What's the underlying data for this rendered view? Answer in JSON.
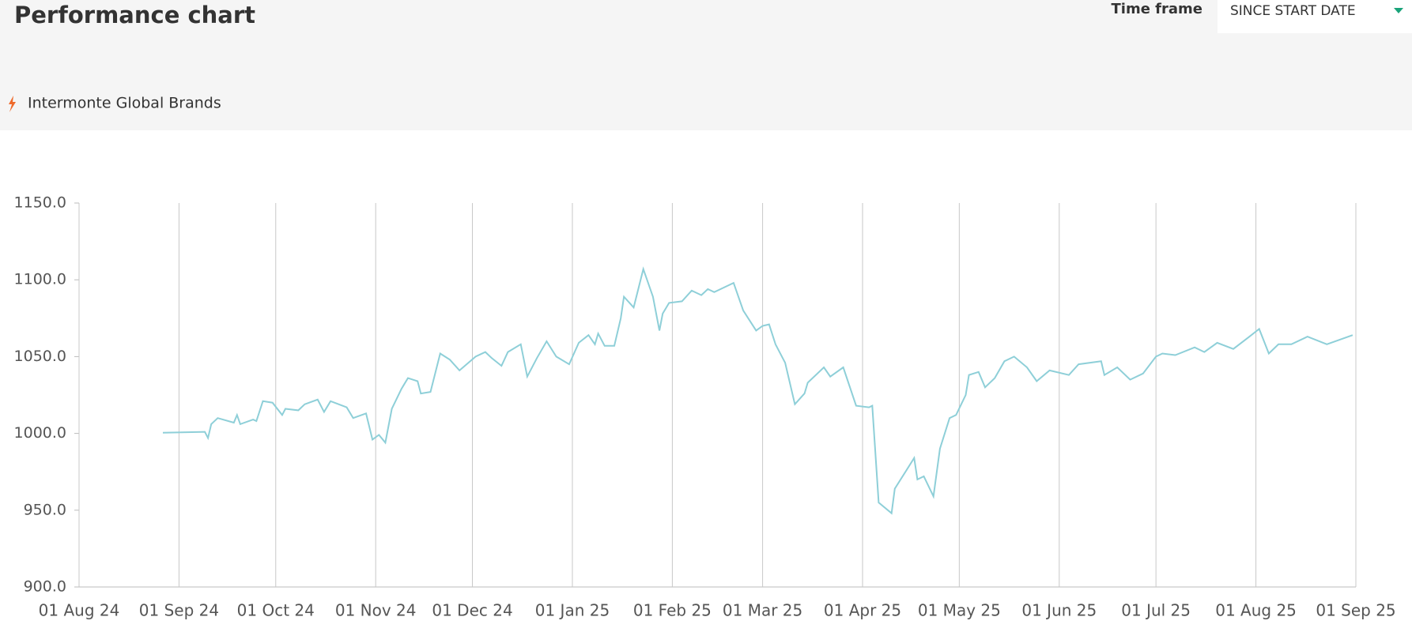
{
  "header": {
    "title": "Performance chart",
    "time_frame_label": "Time frame",
    "time_frame_value": "SINCE START DATE"
  },
  "chart_data": {
    "type": "line",
    "x": [
      "2024-08-27",
      "2024-09-09",
      "2024-09-10",
      "2024-09-11",
      "2024-09-13",
      "2024-09-18",
      "2024-09-19",
      "2024-09-20",
      "2024-09-24",
      "2024-09-25",
      "2024-09-27",
      "2024-09-30",
      "2024-10-03",
      "2024-10-04",
      "2024-10-08",
      "2024-10-10",
      "2024-10-14",
      "2024-10-16",
      "2024-10-18",
      "2024-10-23",
      "2024-10-25",
      "2024-10-29",
      "2024-10-31",
      "2024-11-02",
      "2024-11-04",
      "2024-11-06",
      "2024-11-09",
      "2024-11-11",
      "2024-11-14",
      "2024-11-15",
      "2024-11-18",
      "2024-11-21",
      "2024-11-24",
      "2024-11-27",
      "2024-12-02",
      "2024-12-05",
      "2024-12-07",
      "2024-12-10",
      "2024-12-12",
      "2024-12-16",
      "2024-12-18",
      "2024-12-21",
      "2024-12-24",
      "2024-12-27",
      "2024-12-31",
      "2025-01-03",
      "2025-01-06",
      "2025-01-08",
      "2025-01-09",
      "2025-01-11",
      "2025-01-14",
      "2025-01-16",
      "2025-01-17",
      "2025-01-20",
      "2025-01-23",
      "2025-01-26",
      "2025-01-28",
      "2025-01-29",
      "2025-01-31",
      "2025-02-04",
      "2025-02-07",
      "2025-02-10",
      "2025-02-12",
      "2025-02-14",
      "2025-02-20",
      "2025-02-23",
      "2025-02-27",
      "2025-03-01",
      "2025-03-03",
      "2025-03-05",
      "2025-03-08",
      "2025-03-11",
      "2025-03-14",
      "2025-03-15",
      "2025-03-20",
      "2025-03-22",
      "2025-03-26",
      "2025-03-30",
      "2025-04-03",
      "2025-04-04",
      "2025-04-06",
      "2025-04-10",
      "2025-04-11",
      "2025-04-17",
      "2025-04-18",
      "2025-04-20",
      "2025-04-23",
      "2025-04-25",
      "2025-04-28",
      "2025-04-30",
      "2025-05-03",
      "2025-05-04",
      "2025-05-07",
      "2025-05-09",
      "2025-05-12",
      "2025-05-15",
      "2025-05-18",
      "2025-05-22",
      "2025-05-25",
      "2025-05-29",
      "2025-06-04",
      "2025-06-07",
      "2025-06-14",
      "2025-06-15",
      "2025-06-19",
      "2025-06-23",
      "2025-06-27",
      "2025-07-01",
      "2025-07-03",
      "2025-07-07",
      "2025-07-13",
      "2025-07-16",
      "2025-07-20",
      "2025-07-25",
      "2025-07-30",
      "2025-08-02",
      "2025-08-05",
      "2025-08-08",
      "2025-08-12",
      "2025-08-17",
      "2025-08-23",
      "2025-08-31"
    ],
    "series": [
      {
        "name": "Intermonte Global Brands",
        "color": "#8ecfd8",
        "values": [
          1000.4,
          1001,
          997,
          1006,
          1010,
          1007,
          1012,
          1006,
          1009,
          1008,
          1021,
          1020,
          1012,
          1016,
          1015,
          1019,
          1022,
          1014,
          1021,
          1017,
          1010,
          1013,
          996,
          999,
          994,
          1016,
          1029,
          1036,
          1034,
          1026,
          1027,
          1052,
          1048,
          1041,
          1050,
          1053,
          1049,
          1044,
          1053,
          1058,
          1037,
          1049,
          1060,
          1050,
          1045,
          1059,
          1064,
          1058,
          1065,
          1057,
          1057,
          1075,
          1089,
          1082,
          1107,
          1089,
          1067,
          1078,
          1085,
          1086,
          1093,
          1090,
          1094,
          1092,
          1098,
          1080,
          1067,
          1070,
          1071,
          1058,
          1046,
          1019,
          1026,
          1033,
          1043,
          1037,
          1043,
          1018,
          1017,
          1018,
          955,
          948,
          964,
          984,
          970,
          972,
          959,
          990,
          1010,
          1012,
          1025,
          1038,
          1040,
          1030,
          1036,
          1047,
          1050,
          1043,
          1034,
          1041,
          1038,
          1045,
          1047,
          1038,
          1043,
          1035,
          1039,
          1050,
          1052,
          1051,
          1056,
          1053,
          1059,
          1055,
          1063,
          1068,
          1052,
          1058,
          1058,
          1063,
          1058,
          1064
        ]
      }
    ],
    "xlim": [
      "2024-08-01",
      "2025-09-01"
    ],
    "xticks": [
      {
        "value": "2024-08-01",
        "label": "01 Aug 24"
      },
      {
        "value": "2024-09-01",
        "label": "01 Sep 24"
      },
      {
        "value": "2024-10-01",
        "label": "01 Oct 24"
      },
      {
        "value": "2024-11-01",
        "label": "01 Nov 24"
      },
      {
        "value": "2024-12-01",
        "label": "01 Dec 24"
      },
      {
        "value": "2025-01-01",
        "label": "01 Jan 25"
      },
      {
        "value": "2025-02-01",
        "label": "01 Feb 25"
      },
      {
        "value": "2025-03-01",
        "label": "01 Mar 25"
      },
      {
        "value": "2025-04-01",
        "label": "01 Apr 25"
      },
      {
        "value": "2025-05-01",
        "label": "01 May 25"
      },
      {
        "value": "2025-06-01",
        "label": "01 Jun 25"
      },
      {
        "value": "2025-07-01",
        "label": "01 Jul 25"
      },
      {
        "value": "2025-08-01",
        "label": "01 Aug 25"
      },
      {
        "value": "2025-09-01",
        "label": "01 Sep 25"
      }
    ],
    "ylim": [
      900,
      1150
    ],
    "yticks": [
      {
        "value": 900,
        "label": "900.0"
      },
      {
        "value": 950,
        "label": "950.0"
      },
      {
        "value": 1000,
        "label": "1000.0"
      },
      {
        "value": 1050,
        "label": "1050.0"
      },
      {
        "value": 1100,
        "label": "1100.0"
      },
      {
        "value": 1150,
        "label": "1150.0"
      }
    ],
    "grid": true
  }
}
